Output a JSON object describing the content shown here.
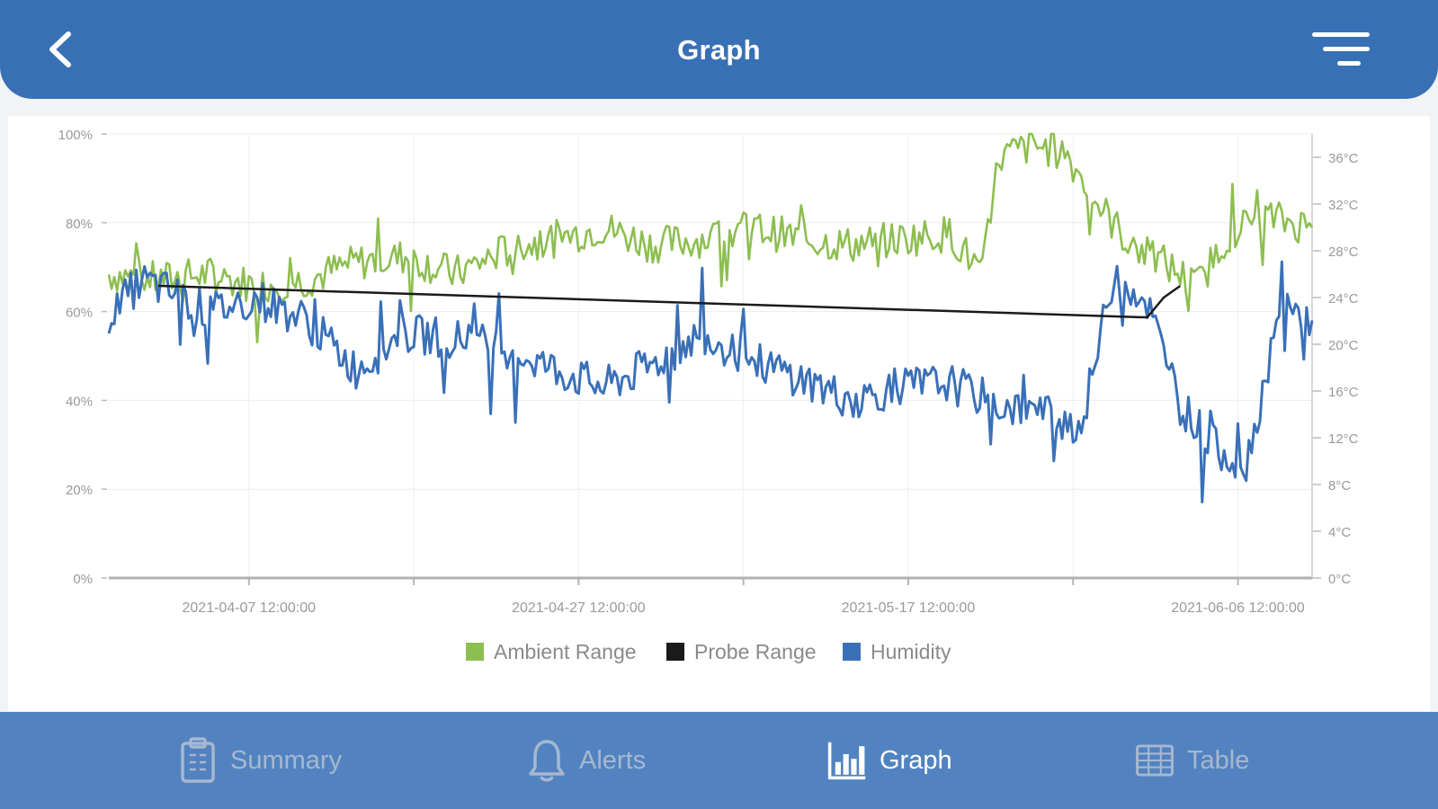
{
  "header": {
    "title": "Graph",
    "back_icon": "chevron-left-icon",
    "menu_icon": "filter-menu-icon"
  },
  "chart_data": {
    "type": "line",
    "title": "",
    "x_tick_labels": [
      "2021-04-07 12:00:00",
      "2021-04-27 12:00:00",
      "2021-05-17 12:00:00",
      "2021-06-06 12:00:00"
    ],
    "xlim": [
      "2021-03-30",
      "2021-06-11"
    ],
    "y_left": {
      "ticks": [
        "0%",
        "20%",
        "40%",
        "60%",
        "80%",
        "100%"
      ],
      "ylim": [
        0,
        100
      ],
      "unit": "%"
    },
    "y_right": {
      "ticks": [
        "0°C",
        "4°C",
        "8°C",
        "12°C",
        "16°C",
        "20°C",
        "24°C",
        "28°C",
        "32°C",
        "36°C"
      ],
      "ylim": [
        0,
        38
      ],
      "unit": "°C"
    },
    "grid": true,
    "legend": "bottom",
    "series": [
      {
        "name": "Ambient Range",
        "color": "#8dbe50",
        "axis": "right",
        "x": [
          "2021-03-30",
          "2021-04-02",
          "2021-04-05",
          "2021-04-08",
          "2021-04-11",
          "2021-04-14",
          "2021-04-17",
          "2021-04-20",
          "2021-04-23",
          "2021-04-26",
          "2021-04-29",
          "2021-05-02",
          "2021-05-05",
          "2021-05-08",
          "2021-05-11",
          "2021-05-14",
          "2021-05-17",
          "2021-05-20",
          "2021-05-22",
          "2021-05-23",
          "2021-05-25",
          "2021-05-27",
          "2021-05-29",
          "2021-05-31",
          "2021-06-02",
          "2021-06-04",
          "2021-06-06",
          "2021-06-08",
          "2021-06-11"
        ],
        "values": [
          26,
          25.5,
          26,
          25,
          25.5,
          27,
          27.5,
          26,
          28,
          29,
          30,
          28.5,
          29,
          30,
          29,
          28.5,
          29,
          29.5,
          26,
          36,
          37,
          36.5,
          32,
          28.5,
          27,
          25,
          29.5,
          31,
          30
        ]
      },
      {
        "name": "Probe Range",
        "color": "#1a1a1a",
        "axis": "right",
        "x": [
          "2021-04-02",
          "2021-06-01",
          "2021-06-02",
          "2021-06-03"
        ],
        "values": [
          25,
          22.3,
          24,
          25
        ]
      },
      {
        "name": "Humidity",
        "color": "#3a70b8",
        "axis": "left",
        "x": [
          "2021-03-30",
          "2021-04-01",
          "2021-04-03",
          "2021-04-05",
          "2021-04-08",
          "2021-04-11",
          "2021-04-14",
          "2021-04-17",
          "2021-04-20",
          "2021-04-23",
          "2021-04-26",
          "2021-04-29",
          "2021-05-02",
          "2021-05-05",
          "2021-05-08",
          "2021-05-11",
          "2021-05-14",
          "2021-05-17",
          "2021-05-20",
          "2021-05-23",
          "2021-05-26",
          "2021-05-28",
          "2021-05-30",
          "2021-06-01",
          "2021-06-03",
          "2021-06-05",
          "2021-06-07",
          "2021-06-09",
          "2021-06-11"
        ],
        "values": [
          59,
          67,
          64,
          60,
          63,
          58,
          47,
          55,
          54,
          52,
          47,
          43,
          48,
          55,
          49,
          45,
          40,
          43,
          44,
          39,
          37,
          34,
          69,
          62,
          39,
          30,
          25,
          60,
          58
        ]
      }
    ]
  },
  "tabs": [
    {
      "label": "Summary",
      "icon": "clipboard-icon",
      "active": false
    },
    {
      "label": "Alerts",
      "icon": "bell-icon",
      "active": false
    },
    {
      "label": "Graph",
      "icon": "bar-chart-icon",
      "active": true
    },
    {
      "label": "Table",
      "icon": "table-grid-icon",
      "active": false
    }
  ]
}
